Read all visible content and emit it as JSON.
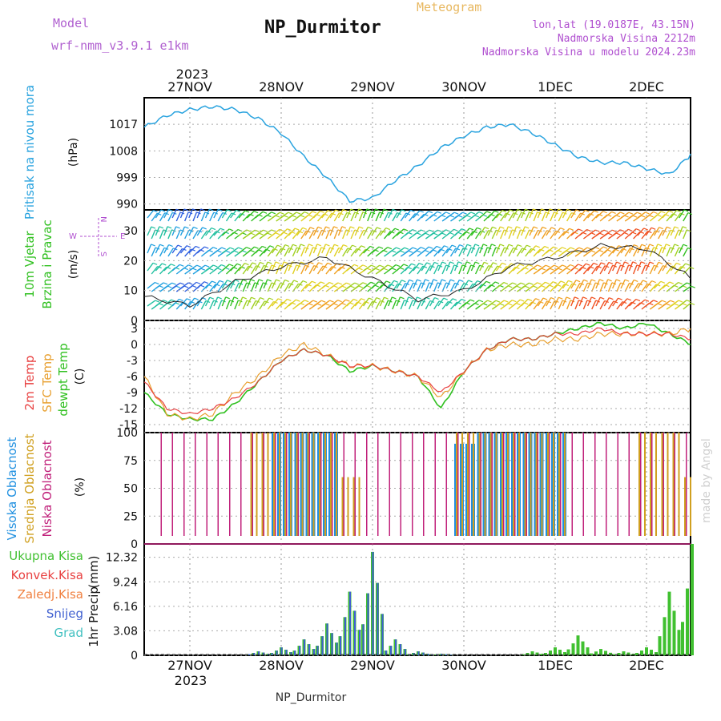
{
  "header": {
    "model_label": "Model",
    "model_name": "wrf-nmm_v3.9.1 e1km",
    "station": "NP_Durmitor",
    "meteogram_label": "Meteogram",
    "coords": "lon,lat (19.0187E, 43.15N)",
    "elevation": "Nadmorska Visina 2212m",
    "model_elevation": "Nadmorska Visina u modelu 2024.23m"
  },
  "time_axis": {
    "year": "2023",
    "labels": [
      "27NOV",
      "28NOV",
      "29NOV",
      "30NOV",
      "1DEC",
      "2DEC"
    ]
  },
  "footer": {
    "station": "NP_Durmitor",
    "credit": "made by Angel"
  },
  "panels": {
    "pressure": {
      "label": "Pritisak na nivou mora",
      "unit": "(hPa)",
      "ticks": [
        "1017",
        "1008",
        "999",
        "990"
      ]
    },
    "wind": {
      "label1": "10m Vjetar",
      "label2": "Brzina i Pravac",
      "unit": "(m/s)",
      "ticks": [
        "30",
        "20",
        "10",
        "0"
      ],
      "compass_w": "W",
      "compass_e": "E",
      "compass_n": "N",
      "compass_s": "S"
    },
    "temp": {
      "label_2m": "2m Temp",
      "label_sfc": "SFC Temp",
      "label_dew": "dewpt Temp",
      "unit": "(C)",
      "ticks": [
        "3",
        "0",
        "-3",
        "-6",
        "-9",
        "-12",
        "-15"
      ]
    },
    "cloud": {
      "label_high": "Visoka Oblacnost",
      "label_mid": "Srednja Oblacnost",
      "label_low": "Niska Oblacnost",
      "unit": "(%)",
      "ticks": [
        "100",
        "75",
        "50",
        "25",
        "0"
      ]
    },
    "precip": {
      "legend": [
        "Ukupna Kisa",
        "Konvek.Kisa",
        "Zaledj.Kisa",
        "Snijeg",
        "Grad"
      ],
      "ylabel": "1hr Precip",
      "unit": "(mm)",
      "ticks": [
        "12.32",
        "9.24",
        "6.16",
        "3.08",
        "0"
      ]
    }
  },
  "colors": {
    "pressure": "#29a3df",
    "temp2m": "#e84040",
    "sfc": "#e8a030",
    "dew": "#30c020",
    "high_cloud": "#2090e0",
    "mid_cloud": "#d0a020",
    "low_cloud": "#c0207a",
    "precip_total": "#40c030",
    "snow": "#4060d0",
    "grad": "#40c0c0",
    "konvek": "#e84040",
    "zaledj": "#f08040"
  },
  "chart_data": [
    {
      "type": "line",
      "title": "Pritisak na nivou mora",
      "ylabel": "(hPa)",
      "ylim": [
        988,
        1026
      ],
      "x_days": [
        0,
        0.25,
        0.5,
        0.75,
        1.0,
        1.25,
        1.5,
        1.75,
        2.0,
        2.25,
        2.5,
        2.75,
        3.0,
        3.25,
        3.5,
        3.75,
        4.0,
        4.25,
        4.5,
        4.75,
        5.0,
        5.25,
        5.5,
        5.75,
        6.0
      ],
      "series": [
        {
          "name": "SLP",
          "values": [
            1016,
            1020,
            1022,
            1023,
            1022,
            1019,
            1014,
            1006,
            999,
            991,
            992,
            998,
            1003,
            1009,
            1013,
            1016,
            1017,
            1014,
            1010,
            1006,
            1004,
            1004,
            1002,
            1000,
            1007
          ]
        }
      ]
    },
    {
      "type": "scatter",
      "title": "10m Vjetar Brzina i Pravac",
      "ylabel": "(m/s)",
      "ylim": [
        0,
        37
      ],
      "x_days": [
        0,
        0.5,
        1.0,
        1.5,
        2.0,
        2.5,
        3.0,
        3.5,
        4.0,
        4.5,
        5.0,
        5.5,
        6.0
      ],
      "series": [
        {
          "name": "Brzina",
          "values": [
            8,
            5,
            13,
            18,
            21,
            14,
            7,
            10,
            18,
            21,
            25,
            24,
            14
          ]
        }
      ]
    },
    {
      "type": "line",
      "title": "Temp",
      "ylabel": "(C)",
      "ylim": [
        -16.5,
        4.5
      ],
      "x_days": [
        0,
        0.25,
        0.5,
        0.75,
        1.0,
        1.25,
        1.5,
        1.75,
        2.0,
        2.25,
        2.5,
        2.75,
        3.0,
        3.25,
        3.5,
        3.75,
        4.0,
        4.25,
        4.5,
        4.75,
        5.0,
        5.25,
        5.5,
        5.75,
        6.0
      ],
      "series": [
        {
          "name": "2m Temp",
          "values": [
            -7,
            -12,
            -13,
            -12,
            -10,
            -7,
            -3,
            -1,
            -2,
            -4,
            -4,
            -5,
            -6,
            -9,
            -5,
            -1,
            1,
            1,
            2,
            2,
            3,
            2,
            2,
            2,
            1
          ]
        },
        {
          "name": "SFC Temp",
          "values": [
            -6,
            -13,
            -14,
            -13,
            -9,
            -6,
            -2,
            0,
            -2,
            -4,
            -4,
            -5,
            -6,
            -10,
            -5,
            -1,
            0,
            0,
            1,
            1,
            2,
            2,
            2,
            2,
            3
          ]
        },
        {
          "name": "dewpt Temp",
          "values": [
            -9,
            -13,
            -14,
            -14,
            -11,
            -7,
            -3,
            -1,
            -2,
            -5,
            -4,
            -5,
            -6,
            -12,
            -5,
            -1,
            1,
            1,
            2,
            3,
            4,
            3,
            4,
            2,
            0
          ]
        }
      ]
    },
    {
      "type": "bar",
      "title": "Oblacnost",
      "ylabel": "(%)",
      "ylim": [
        0,
        100
      ],
      "x_days": [
        0.25,
        0.5,
        0.75,
        1.0,
        1.25,
        1.5,
        1.75,
        2.0,
        2.25,
        2.5,
        2.75,
        3.0,
        3.25,
        3.5,
        3.75,
        4.0,
        4.25,
        4.5,
        4.75,
        5.0,
        5.25,
        5.5,
        5.75,
        6.0
      ],
      "series": [
        {
          "name": "Visoka Oblacnost",
          "values": [
            0,
            0,
            0,
            0,
            0,
            100,
            100,
            100,
            0,
            0,
            0,
            0,
            0,
            90,
            100,
            100,
            100,
            100,
            0,
            0,
            0,
            0,
            0,
            0
          ]
        },
        {
          "name": "Srednja Oblacnost",
          "values": [
            0,
            0,
            0,
            0,
            100,
            100,
            100,
            100,
            60,
            0,
            0,
            0,
            0,
            100,
            100,
            100,
            100,
            100,
            0,
            0,
            0,
            100,
            100,
            60
          ]
        },
        {
          "name": "Niska Oblacnost",
          "values": [
            100,
            100,
            100,
            100,
            100,
            100,
            100,
            100,
            100,
            100,
            100,
            100,
            100,
            100,
            100,
            100,
            100,
            100,
            100,
            100,
            100,
            100,
            100,
            100
          ]
        }
      ]
    },
    {
      "type": "bar",
      "title": "1hr Precip",
      "ylabel": "(mm)",
      "ylim": [
        0,
        14
      ],
      "x_days": [
        1.25,
        1.5,
        1.75,
        2.0,
        2.25,
        2.5,
        2.75,
        3.0,
        3.25,
        3.5,
        3.75,
        4.0,
        4.25,
        4.5,
        4.75,
        5.0,
        5.25,
        5.5,
        5.75,
        6.0
      ],
      "series": [
        {
          "name": "Ukupna Kisa",
          "values": [
            0.5,
            1,
            2,
            4,
            8,
            13,
            2,
            0.5,
            0.2,
            0,
            0,
            0,
            0.5,
            1,
            2.5,
            0.8,
            0.5,
            1,
            8,
            14
          ]
        },
        {
          "name": "Snijeg",
          "values": [
            0.5,
            1,
            2,
            4,
            8,
            13,
            2,
            0.5,
            0.2,
            0,
            0,
            0,
            0,
            0,
            0,
            0,
            0,
            0,
            0,
            0
          ]
        }
      ]
    }
  ]
}
